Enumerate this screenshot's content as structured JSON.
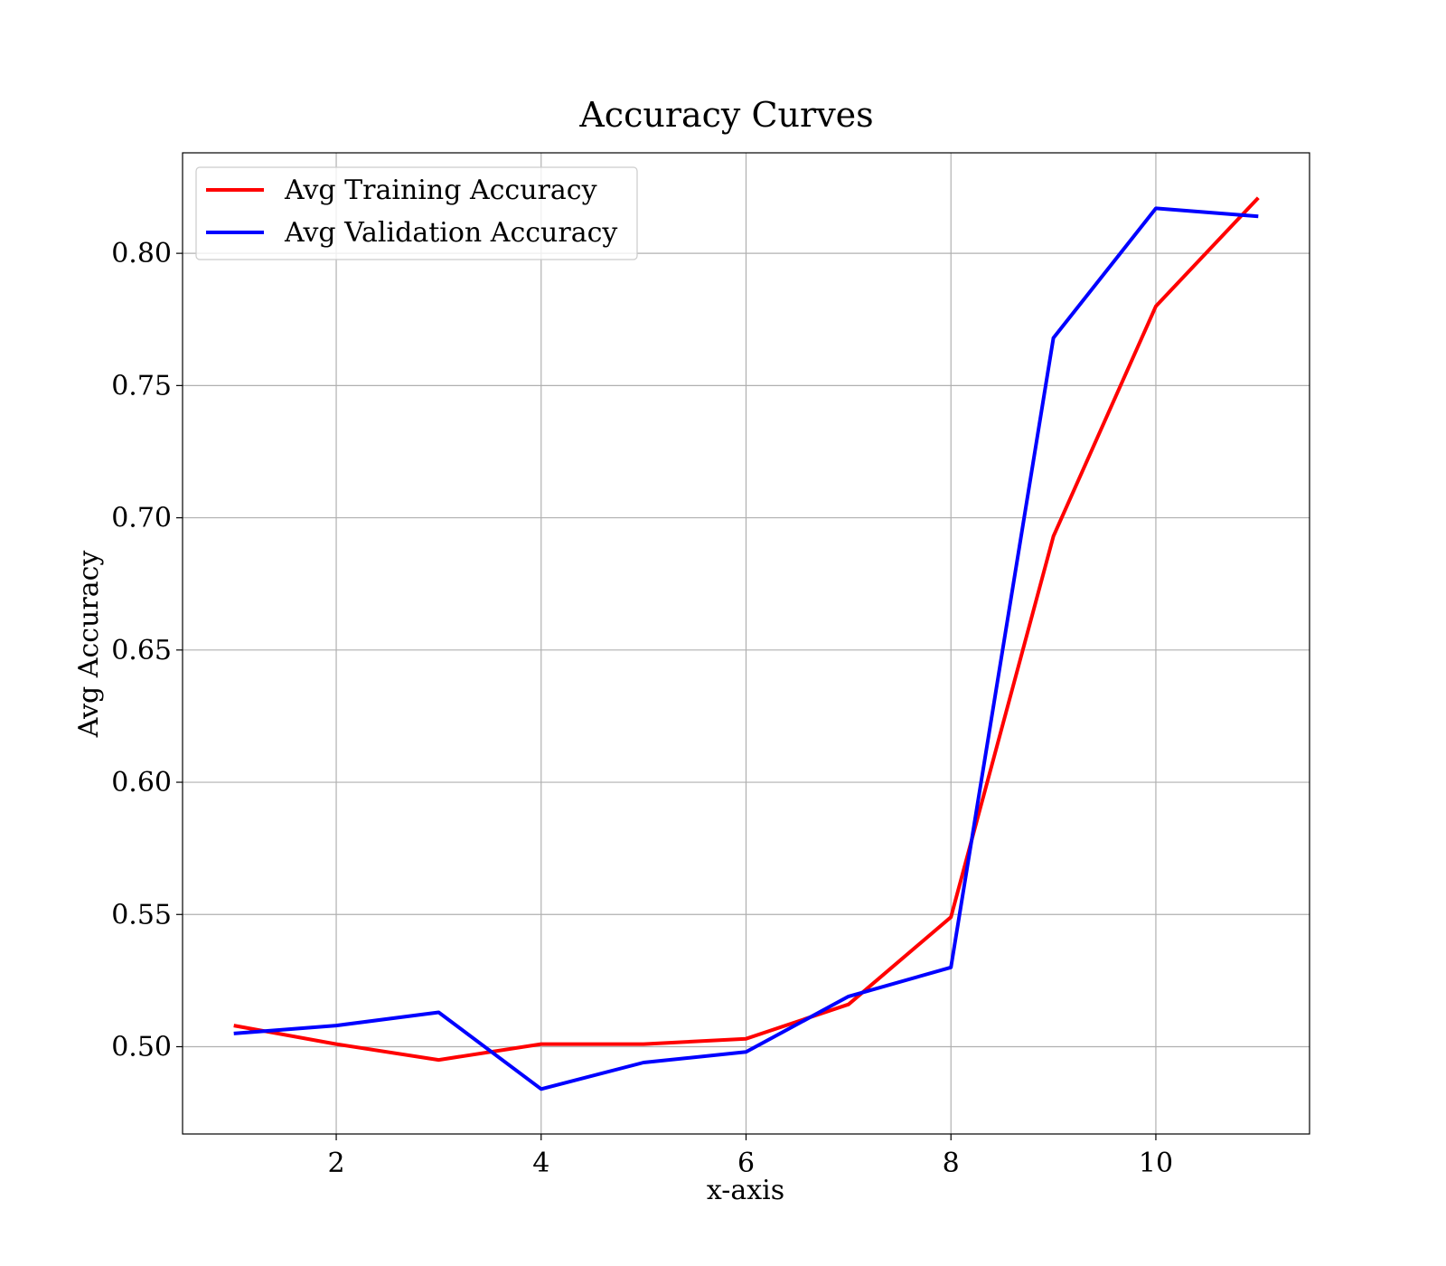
{
  "chart_data": {
    "type": "line",
    "title": "Accuracy Curves",
    "xlabel": "x-axis",
    "ylabel": "Avg Accuracy",
    "xlim": [
      0.5,
      11.5
    ],
    "ylim": [
      0.467,
      0.838
    ],
    "xticks": [
      2,
      4,
      6,
      8,
      10
    ],
    "xtick_labels": [
      "2",
      "4",
      "6",
      "8",
      "10"
    ],
    "yticks": [
      0.5,
      0.55,
      0.6,
      0.65,
      0.7,
      0.75,
      0.8
    ],
    "ytick_labels": [
      "0.50",
      "0.55",
      "0.60",
      "0.65",
      "0.70",
      "0.75",
      "0.80"
    ],
    "grid": true,
    "legend_position": "top-left",
    "x": [
      1,
      2,
      3,
      4,
      5,
      6,
      7,
      8,
      9,
      10,
      11
    ],
    "series": [
      {
        "name": "Avg Training Accuracy",
        "color": "#ff0000",
        "values": [
          0.508,
          0.501,
          0.495,
          0.501,
          0.501,
          0.503,
          0.516,
          0.549,
          0.693,
          0.78,
          0.821
        ]
      },
      {
        "name": "Avg Validation Accuracy",
        "color": "#0000ff",
        "values": [
          0.505,
          0.508,
          0.513,
          0.484,
          0.494,
          0.498,
          0.519,
          0.53,
          0.768,
          0.817,
          0.814
        ]
      }
    ]
  }
}
